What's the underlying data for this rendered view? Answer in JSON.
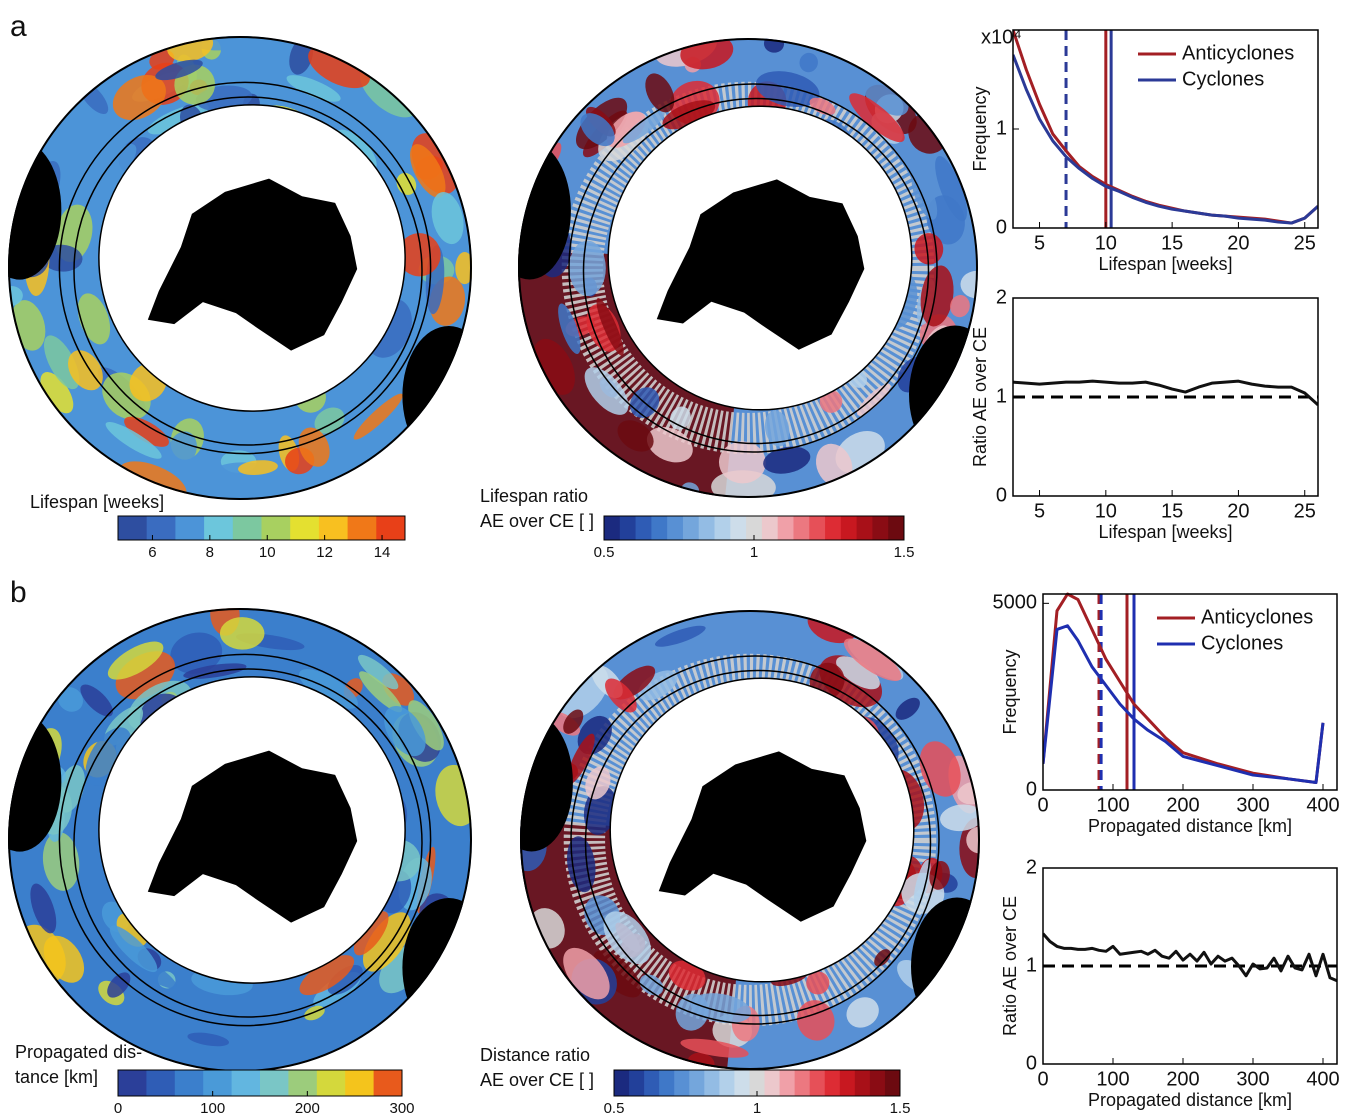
{
  "panel_labels": [
    "a",
    "b"
  ],
  "chart_data": [
    {
      "type": "line",
      "ylabel": "Frequency",
      "xlabel": "Lifespan [weeks]",
      "y_multiplier": "x10⁴",
      "x": [
        3,
        4,
        5,
        6,
        7,
        8,
        9,
        10,
        11,
        12,
        13,
        14,
        15,
        16,
        17,
        18,
        19,
        20,
        21,
        22,
        23,
        24,
        25,
        26
      ],
      "xlim": [
        3,
        26
      ],
      "xticks": [
        5,
        10,
        15,
        20,
        25
      ],
      "ylim": [
        0,
        2
      ],
      "yticks": [
        0,
        1
      ],
      "legend": "upper right",
      "series": [
        {
          "name": "Anticyclones",
          "color": "#a31f24",
          "values": [
            2.0,
            1.6,
            1.25,
            0.95,
            0.78,
            0.62,
            0.52,
            0.44,
            0.38,
            0.32,
            0.27,
            0.23,
            0.2,
            0.17,
            0.15,
            0.13,
            0.12,
            0.11,
            0.1,
            0.09,
            0.07,
            0.05,
            0.1,
            0.22
          ]
        },
        {
          "name": "Cyclones",
          "color": "#2b3a97",
          "values": [
            1.75,
            1.4,
            1.1,
            0.88,
            0.72,
            0.6,
            0.5,
            0.42,
            0.37,
            0.31,
            0.26,
            0.22,
            0.19,
            0.17,
            0.15,
            0.13,
            0.12,
            0.1,
            0.09,
            0.08,
            0.06,
            0.05,
            0.1,
            0.22
          ]
        }
      ],
      "vlines": [
        {
          "value": 7,
          "color": "#2b3a97",
          "dash": true
        },
        {
          "value": 10,
          "color": "#a31f24",
          "dash": false
        },
        {
          "value": 10.4,
          "color": "#2b3a97",
          "dash": false
        }
      ]
    },
    {
      "type": "line",
      "ylabel": "Ratio AE over CE",
      "xlabel": "Lifespan [weeks]",
      "x": [
        3,
        4,
        5,
        6,
        7,
        8,
        9,
        10,
        11,
        12,
        13,
        14,
        15,
        16,
        17,
        18,
        19,
        20,
        21,
        22,
        23,
        24,
        25,
        26
      ],
      "xlim": [
        3,
        26
      ],
      "xticks": [
        5,
        10,
        15,
        20,
        25
      ],
      "ylim": [
        0,
        2
      ],
      "yticks": [
        0,
        1,
        2
      ],
      "hline": {
        "value": 1,
        "color": "#000000",
        "dash": true
      },
      "series": [
        {
          "color": "#111111",
          "values": [
            1.15,
            1.14,
            1.13,
            1.14,
            1.15,
            1.15,
            1.16,
            1.15,
            1.14,
            1.14,
            1.15,
            1.12,
            1.08,
            1.05,
            1.1,
            1.14,
            1.15,
            1.16,
            1.13,
            1.11,
            1.1,
            1.1,
            1.04,
            0.92
          ]
        }
      ]
    },
    {
      "type": "line",
      "ylabel": "Frequency",
      "xlabel": "Propagated distance [km]",
      "x": [
        0,
        20,
        35,
        50,
        70,
        90,
        110,
        130,
        150,
        175,
        200,
        250,
        300,
        350,
        390,
        400
      ],
      "xlim": [
        0,
        420
      ],
      "xticks": [
        0,
        100,
        200,
        300,
        400
      ],
      "ylim": [
        0,
        5250
      ],
      "yticks": [
        0,
        5000
      ],
      "legend": "upper right",
      "series": [
        {
          "name": "Anticyclones",
          "color": "#a31f24",
          "values": [
            700,
            4800,
            5250,
            5100,
            4300,
            3500,
            2900,
            2300,
            1900,
            1400,
            1000,
            700,
            450,
            300,
            200,
            1800
          ]
        },
        {
          "name": "Cyclones",
          "color": "#1f2fb0",
          "values": [
            700,
            4300,
            4400,
            4000,
            3300,
            2800,
            2300,
            1900,
            1600,
            1300,
            900,
            650,
            400,
            300,
            200,
            1800
          ]
        }
      ],
      "vlines": [
        {
          "value": 80,
          "color": "#a31f24",
          "dash": true
        },
        {
          "value": 83,
          "color": "#1f2fb0",
          "dash": true
        },
        {
          "value": 120,
          "color": "#a31f24",
          "dash": false
        },
        {
          "value": 130,
          "color": "#1f2fb0",
          "dash": false
        }
      ]
    },
    {
      "type": "line",
      "ylabel": "Ratio AE over CE",
      "xlabel": "Propagated distance [km]",
      "x": [
        0,
        10,
        20,
        30,
        40,
        50,
        60,
        70,
        80,
        90,
        100,
        110,
        120,
        130,
        140,
        150,
        160,
        170,
        180,
        190,
        200,
        210,
        220,
        230,
        240,
        250,
        260,
        270,
        280,
        290,
        300,
        310,
        320,
        330,
        340,
        350,
        360,
        370,
        380,
        390,
        400,
        410,
        420
      ],
      "xlim": [
        0,
        420
      ],
      "xticks": [
        0,
        100,
        200,
        300,
        400
      ],
      "ylim": [
        0,
        2
      ],
      "yticks": [
        0,
        1,
        2
      ],
      "hline": {
        "value": 1,
        "color": "#000000",
        "dash": true
      },
      "series": [
        {
          "color": "#111111",
          "values": [
            1.33,
            1.25,
            1.2,
            1.18,
            1.18,
            1.17,
            1.17,
            1.18,
            1.16,
            1.15,
            1.2,
            1.12,
            1.13,
            1.14,
            1.15,
            1.12,
            1.16,
            1.1,
            1.08,
            1.15,
            1.06,
            1.12,
            1.05,
            1.14,
            1.02,
            1.1,
            1.05,
            1.08,
            1.0,
            0.9,
            1.02,
            0.97,
            0.98,
            1.08,
            0.95,
            1.1,
            0.98,
            0.96,
            1.12,
            0.9,
            1.12,
            0.88,
            0.85
          ]
        }
      ]
    },
    {
      "type": "colorbar",
      "label": [
        "Lifespan [weeks]"
      ],
      "lim": [
        4.8,
        14.8
      ],
      "ticks": [
        6,
        8,
        10,
        12,
        14
      ],
      "colors": [
        "#2e4ea0",
        "#3a6cc0",
        "#4c94d8",
        "#6cc6dc",
        "#7cc8a0",
        "#a8d060",
        "#e4e030",
        "#f8c020",
        "#f07818",
        "#e84018"
      ]
    },
    {
      "type": "colorbar",
      "label": [
        "Lifespan ratio",
        "AE over CE [ ]"
      ],
      "lim": [
        0.5,
        1.5
      ],
      "ticks": [
        0.5,
        1,
        1.5
      ],
      "colors": [
        "#1b2a7f",
        "#22409a",
        "#2f5cb5",
        "#3f78c8",
        "#5890d4",
        "#74a6dc",
        "#93bce4",
        "#b2d0ea",
        "#cdddea",
        "#d8d8d8",
        "#ecc8cc",
        "#f0a0a8",
        "#ec7880",
        "#e65058",
        "#dd2c34",
        "#c81820",
        "#a81018",
        "#8a0c14",
        "#6c0a10"
      ]
    },
    {
      "type": "colorbar",
      "label": [
        "Propagated dis-",
        "tance [km]"
      ],
      "lim": [
        0,
        300
      ],
      "ticks": [
        0,
        100,
        200,
        300
      ],
      "colors": [
        "#2b3f99",
        "#2f5db6",
        "#3b7fcc",
        "#4a9ad8",
        "#62b6e0",
        "#7ac6c6",
        "#9ccc7c",
        "#d4d83c",
        "#f4c41c",
        "#e85a1c"
      ]
    },
    {
      "type": "colorbar",
      "label": [
        "Distance ratio",
        "AE over CE [ ]"
      ],
      "lim": [
        0.5,
        1.5
      ],
      "ticks": [
        0.5,
        1,
        1.5
      ],
      "colors": [
        "#1b2a7f",
        "#22409a",
        "#2f5cb5",
        "#3f78c8",
        "#5890d4",
        "#74a6dc",
        "#93bce4",
        "#b2d0ea",
        "#cdddea",
        "#d8d8d8",
        "#ecc8cc",
        "#f0a0a8",
        "#ec7880",
        "#e65058",
        "#dd2c34",
        "#c81820",
        "#a81018",
        "#8a0c14",
        "#6c0a10"
      ]
    }
  ]
}
